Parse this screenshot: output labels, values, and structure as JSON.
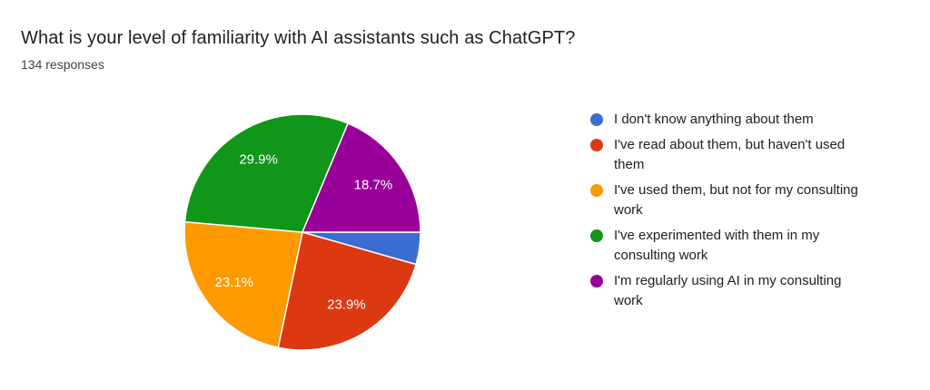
{
  "header": {
    "title": "What is your level of familiarity with AI assistants such as ChatGPT?",
    "subtitle": "134 responses"
  },
  "legend": {
    "position": "right",
    "items": [
      {
        "label": "I don't know anything about them",
        "color": "#3B6CD0"
      },
      {
        "label": "I've read about them, but haven't used\nthem",
        "color": "#DC3912"
      },
      {
        "label": "I've used them, but not for my consulting\nwork",
        "color": "#FF9900"
      },
      {
        "label": "I've experimented with them in my\nconsulting work",
        "color": "#109618"
      },
      {
        "label": "I'm regularly using AI in my consulting\nwork",
        "color": "#990099"
      }
    ]
  },
  "chart_data": {
    "type": "pie",
    "title": "What is your level of familiarity with AI assistants such as ChatGPT?",
    "subtitle": "134 responses",
    "total_responses": 134,
    "legend_position": "right",
    "start_angle": "east",
    "direction": "clockwise",
    "slices": [
      {
        "label": "I don't know anything about them",
        "pct": 4.4,
        "pct_label": "",
        "color": "#3B6CD0"
      },
      {
        "label": "I've read about them, but haven't used them",
        "pct": 23.9,
        "pct_label": "23.9%",
        "color": "#DC3912"
      },
      {
        "label": "I've used them, but not for my consulting work",
        "pct": 23.1,
        "pct_label": "23.1%",
        "color": "#FF9900"
      },
      {
        "label": "I've experimented with them in my consulting work",
        "pct": 29.9,
        "pct_label": "29.9%",
        "color": "#109618"
      },
      {
        "label": "I'm regularly using AI in my consulting work",
        "pct": 18.7,
        "pct_label": "18.7%",
        "color": "#990099"
      }
    ]
  }
}
